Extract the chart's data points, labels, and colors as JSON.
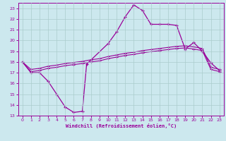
{
  "xlabel": "Windchill (Refroidissement éolien,°C)",
  "background_color": "#cce8ee",
  "grid_color": "#aacccc",
  "line_color": "#990099",
  "xlim": [
    -0.5,
    23.5
  ],
  "ylim": [
    13,
    23.5
  ],
  "x_ticks": [
    0,
    1,
    2,
    3,
    4,
    5,
    6,
    7,
    8,
    9,
    10,
    11,
    12,
    13,
    14,
    15,
    16,
    17,
    18,
    19,
    20,
    21,
    22,
    23
  ],
  "y_ticks": [
    13,
    14,
    15,
    16,
    17,
    18,
    19,
    20,
    21,
    22,
    23
  ],
  "curve1_x": [
    0,
    1,
    2,
    3,
    4,
    5,
    6,
    7,
    7.5,
    10,
    11,
    12,
    13,
    14,
    15,
    16,
    17,
    18,
    19,
    20,
    21,
    22,
    23
  ],
  "curve1_y": [
    18,
    17,
    17,
    16.2,
    15,
    13.8,
    13.3,
    13.4,
    17.8,
    19.7,
    20.8,
    22.2,
    23.3,
    22.8,
    21.5,
    21.5,
    21.5,
    21.4,
    19.2,
    19.8,
    19.0,
    17.9,
    17.2
  ],
  "curve2_x": [
    0,
    1,
    2,
    3,
    4,
    5,
    6,
    7,
    8,
    9,
    10,
    11,
    12,
    13,
    14,
    15,
    16,
    17,
    18,
    19,
    20,
    21,
    22,
    23
  ],
  "curve2_y": [
    18.0,
    17.3,
    17.4,
    17.6,
    17.7,
    17.85,
    17.95,
    18.05,
    18.2,
    18.3,
    18.5,
    18.65,
    18.8,
    18.9,
    19.05,
    19.15,
    19.25,
    19.35,
    19.45,
    19.5,
    19.4,
    19.25,
    17.5,
    17.3
  ],
  "curve3_x": [
    0,
    1,
    2,
    3,
    4,
    5,
    6,
    7,
    8,
    9,
    10,
    11,
    12,
    13,
    14,
    15,
    16,
    17,
    18,
    19,
    20,
    21,
    22,
    23
  ],
  "curve3_y": [
    18.0,
    17.1,
    17.2,
    17.4,
    17.5,
    17.65,
    17.75,
    17.85,
    18.0,
    18.1,
    18.3,
    18.45,
    18.6,
    18.7,
    18.85,
    18.95,
    19.05,
    19.15,
    19.25,
    19.3,
    19.2,
    19.05,
    17.3,
    17.1
  ]
}
